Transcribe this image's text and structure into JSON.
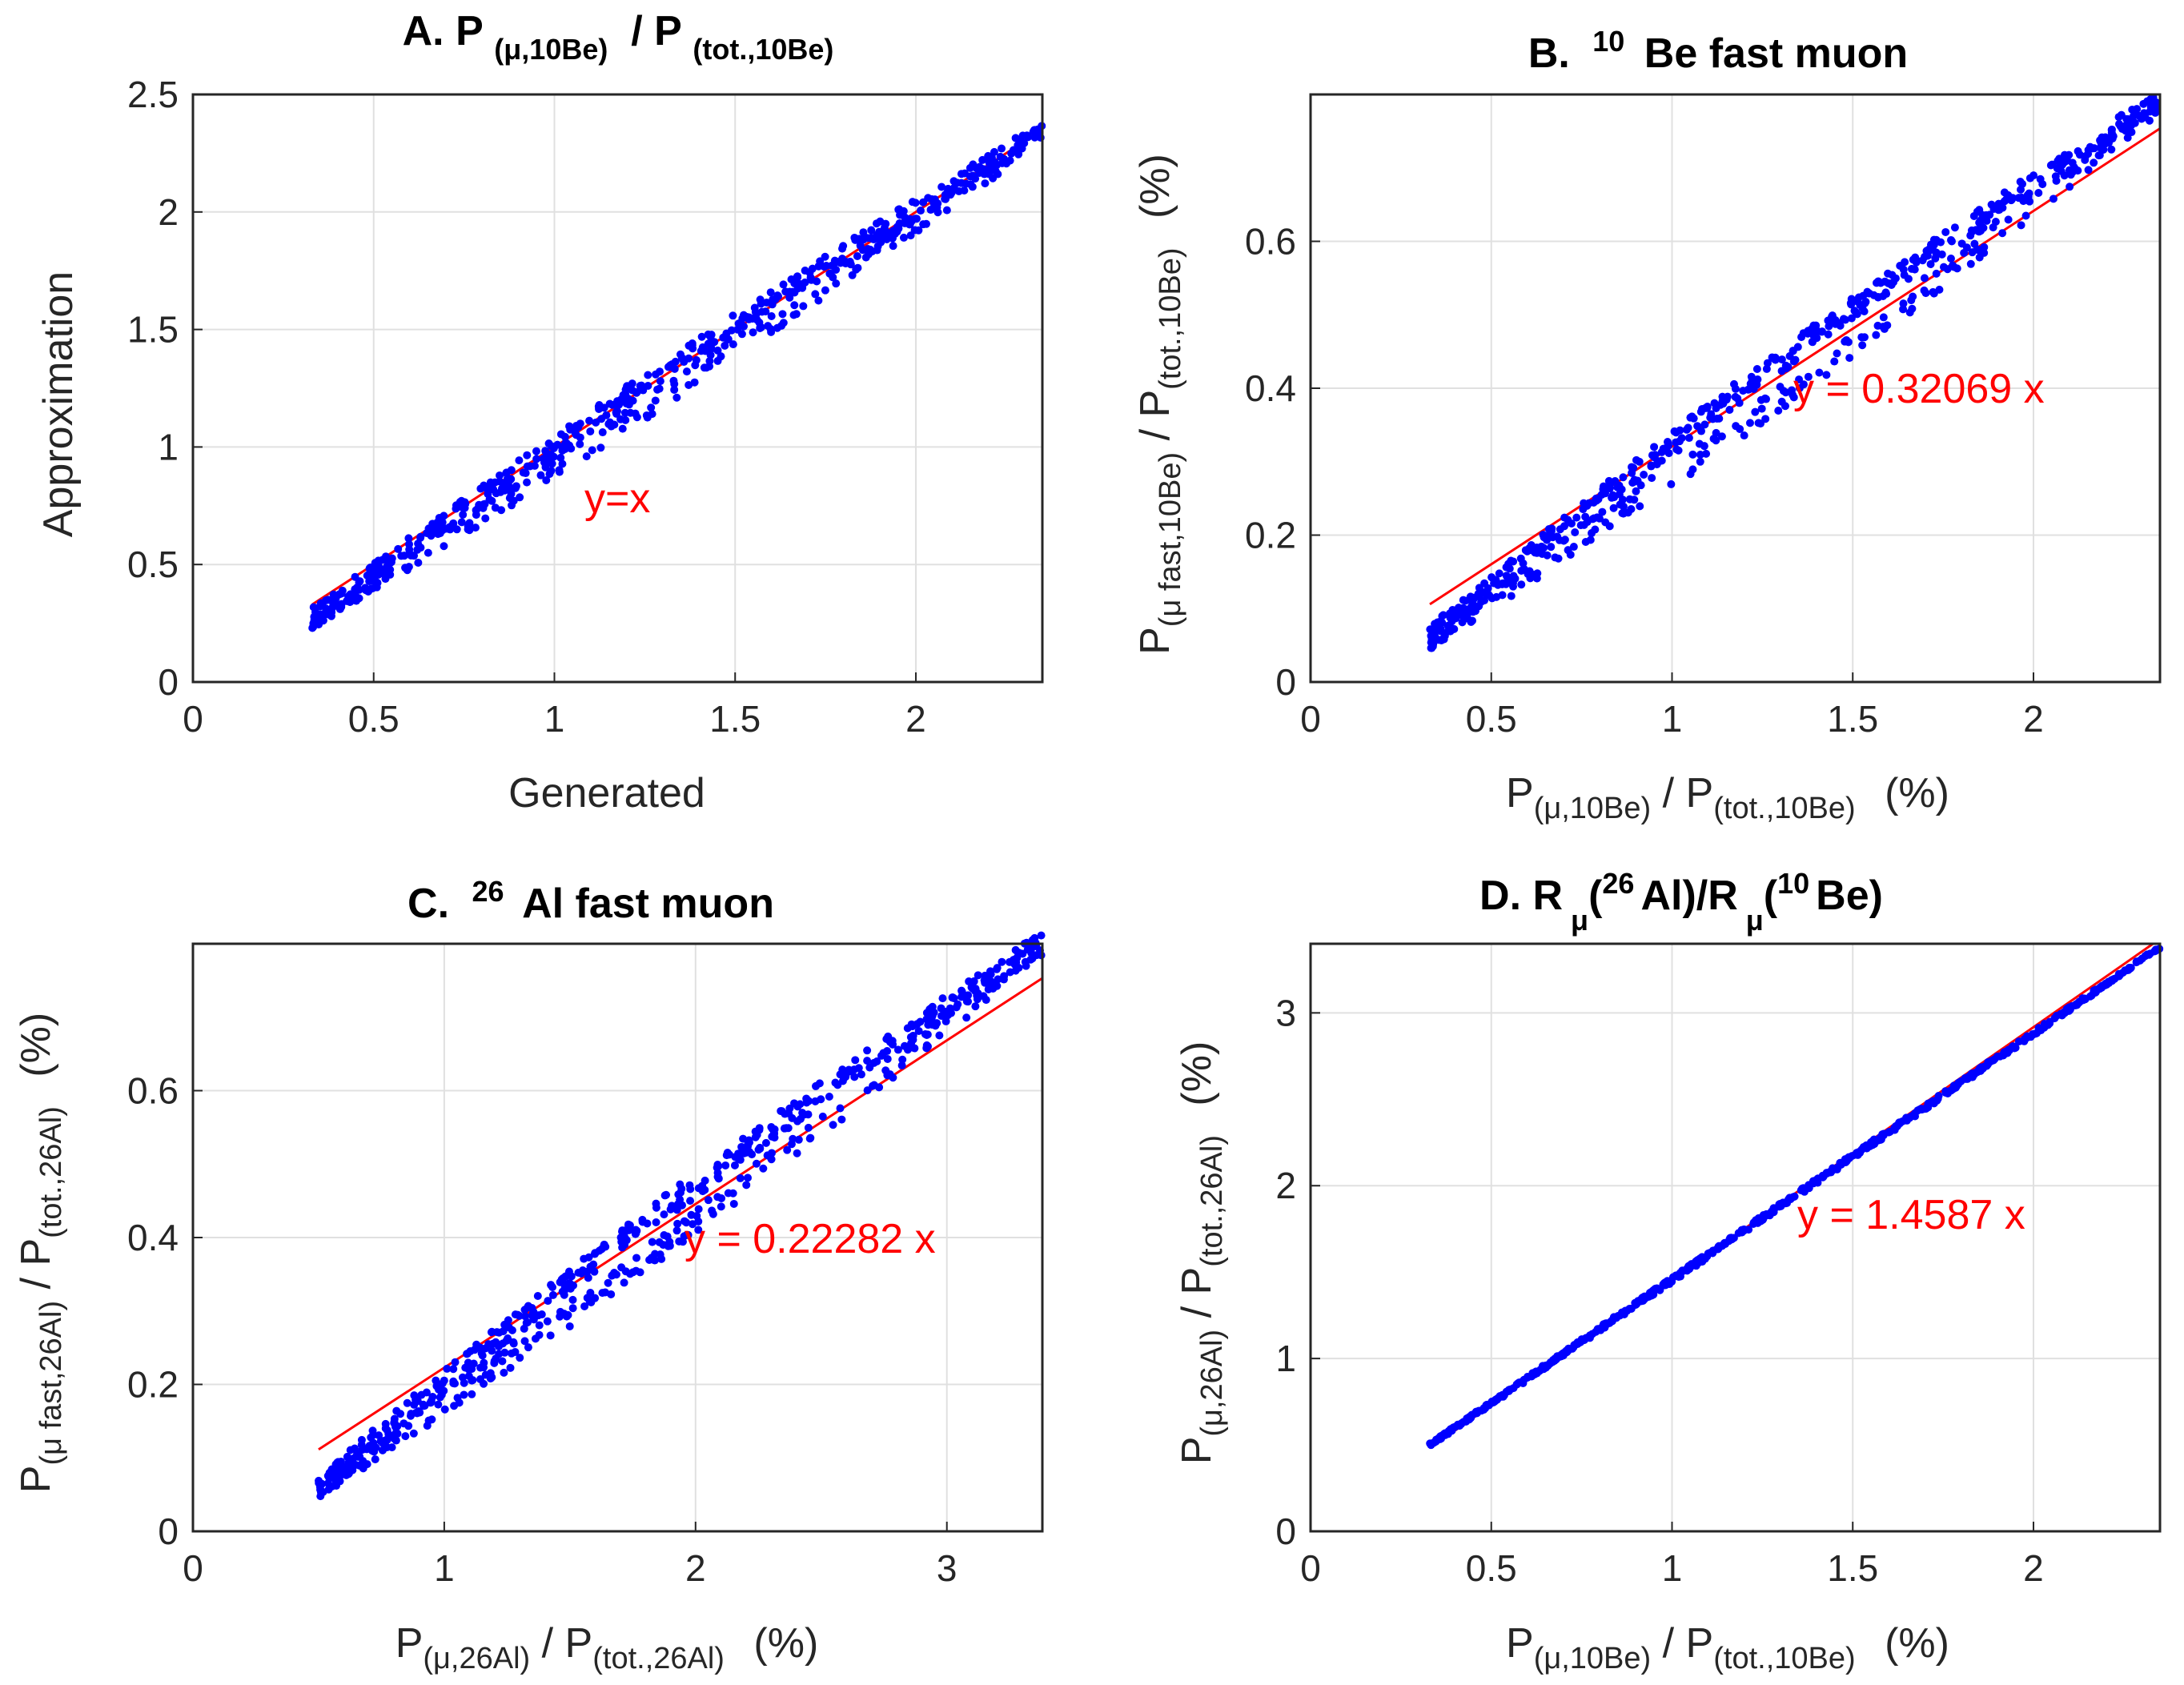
{
  "colors": {
    "points": "#0000ff",
    "fit_line": "#ff0000",
    "grid": "#e0e0e0",
    "axis": "#262626"
  },
  "chart_data": [
    {
      "panel": "A",
      "type": "scatter",
      "title": {
        "prefix": "A. P",
        "sub1": "(μ,10Be)",
        "mid": " / P",
        "sub2": "(tot.,10Be)"
      },
      "xlabel": {
        "text": "Generated"
      },
      "ylabel": {
        "text": "Approximation"
      },
      "xlim": [
        0,
        2.35
      ],
      "ylim": [
        0,
        2.5
      ],
      "xticks": [
        "0",
        "0.5",
        "1",
        "1.5",
        "2"
      ],
      "yticks": [
        "0",
        "0.5",
        "1",
        "1.5",
        "2",
        "2.5"
      ],
      "grid": true,
      "series": [
        {
          "kind": "points",
          "x_range": [
            0.33,
            2.35
          ],
          "y_range": [
            0.27,
            2.34
          ],
          "coefficient": 1.0,
          "curvature": 0.22
        }
      ],
      "fit_line": {
        "slope": 1.0,
        "x_range": [
          0.33,
          2.33
        ]
      },
      "annotation": "y=x"
    },
    {
      "panel": "B",
      "type": "scatter",
      "title": {
        "prefix": "B.",
        "sup": "10",
        "rest": "Be fast muon"
      },
      "xlabel": {
        "p1": "P",
        "s1": "(μ,10Be)",
        "p2": " / P",
        "s2": "(tot.,10Be)",
        "p3": " (%)"
      },
      "ylabel": {
        "p1": "P",
        "s1": "(μ fast,10Be)",
        "p2": " / P",
        "s2": "(tot.,10Be)",
        "p3": " (%)"
      },
      "xlim": [
        0,
        2.35
      ],
      "ylim": [
        0,
        0.8
      ],
      "xticks": [
        "0",
        "0.5",
        "1",
        "1.5",
        "2"
      ],
      "yticks": [
        "0",
        "0.2",
        "0.4",
        "0.6"
      ],
      "grid": true,
      "series": [
        {
          "kind": "points",
          "x_range": [
            0.33,
            2.35
          ],
          "y_range": [
            0.06,
            0.79
          ],
          "coefficient": 0.32069,
          "curvature": 0.3
        }
      ],
      "fit_line": {
        "slope": 0.32069,
        "x_range": [
          0.33,
          2.35
        ]
      },
      "annotation": "y = 0.32069 x"
    },
    {
      "panel": "C",
      "type": "scatter",
      "title": {
        "prefix": "C.",
        "sup": "26",
        "rest": "Al fast muon"
      },
      "xlabel": {
        "p1": "P",
        "s1": "(μ,26Al)",
        "p2": " / P",
        "s2": "(tot.,26Al)",
        "p3": " (%)"
      },
      "ylabel": {
        "p1": "P",
        "s1": "(μ fast,26Al)",
        "p2": " / P",
        "s2": "(tot.,26Al)",
        "p3": " (%)"
      },
      "xlim": [
        0,
        3.38
      ],
      "ylim": [
        0,
        0.8
      ],
      "xticks": [
        "0",
        "1",
        "2",
        "3"
      ],
      "yticks": [
        "0",
        "0.2",
        "0.4",
        "0.6"
      ],
      "grid": true,
      "series": [
        {
          "kind": "points",
          "x_range": [
            0.5,
            3.38
          ],
          "y_range": [
            0.06,
            0.8
          ],
          "coefficient": 0.22282,
          "curvature": 0.3
        }
      ],
      "fit_line": {
        "slope": 0.22282,
        "x_range": [
          0.5,
          3.38
        ]
      },
      "annotation": "y = 0.22282 x"
    },
    {
      "panel": "D",
      "type": "scatter",
      "title": {
        "prefix": "D. R",
        "sub1": "μ",
        "mid": "(",
        "sup1": "26",
        "rest1": "Al)/R",
        "sub2": "μ",
        "mid2": "(",
        "sup2": "10",
        "rest2": "Be)"
      },
      "xlabel": {
        "p1": "P",
        "s1": "(μ,10Be)",
        "p2": " / P",
        "s2": "(tot.,10Be)",
        "p3": " (%)"
      },
      "ylabel": {
        "p1": "P",
        "s1": "(μ,26Al)",
        "p2": " / P",
        "s2": "(tot.,26Al)",
        "p3": " (%)"
      },
      "xlim": [
        0,
        2.35
      ],
      "ylim": [
        0,
        3.4
      ],
      "xticks": [
        "0",
        "0.5",
        "1",
        "1.5",
        "2"
      ],
      "yticks": [
        "0",
        "1",
        "2",
        "3"
      ],
      "grid": true,
      "series": [
        {
          "kind": "points",
          "x_range": [
            0.33,
            2.35
          ],
          "y_range": [
            0.5,
            3.38
          ],
          "coefficient": 1.4587,
          "curvature": 0.02
        }
      ],
      "fit_line": {
        "slope": 1.4587,
        "x_range": [
          0.33,
          2.33
        ]
      },
      "annotation": "y = 1.4587 x"
    }
  ]
}
